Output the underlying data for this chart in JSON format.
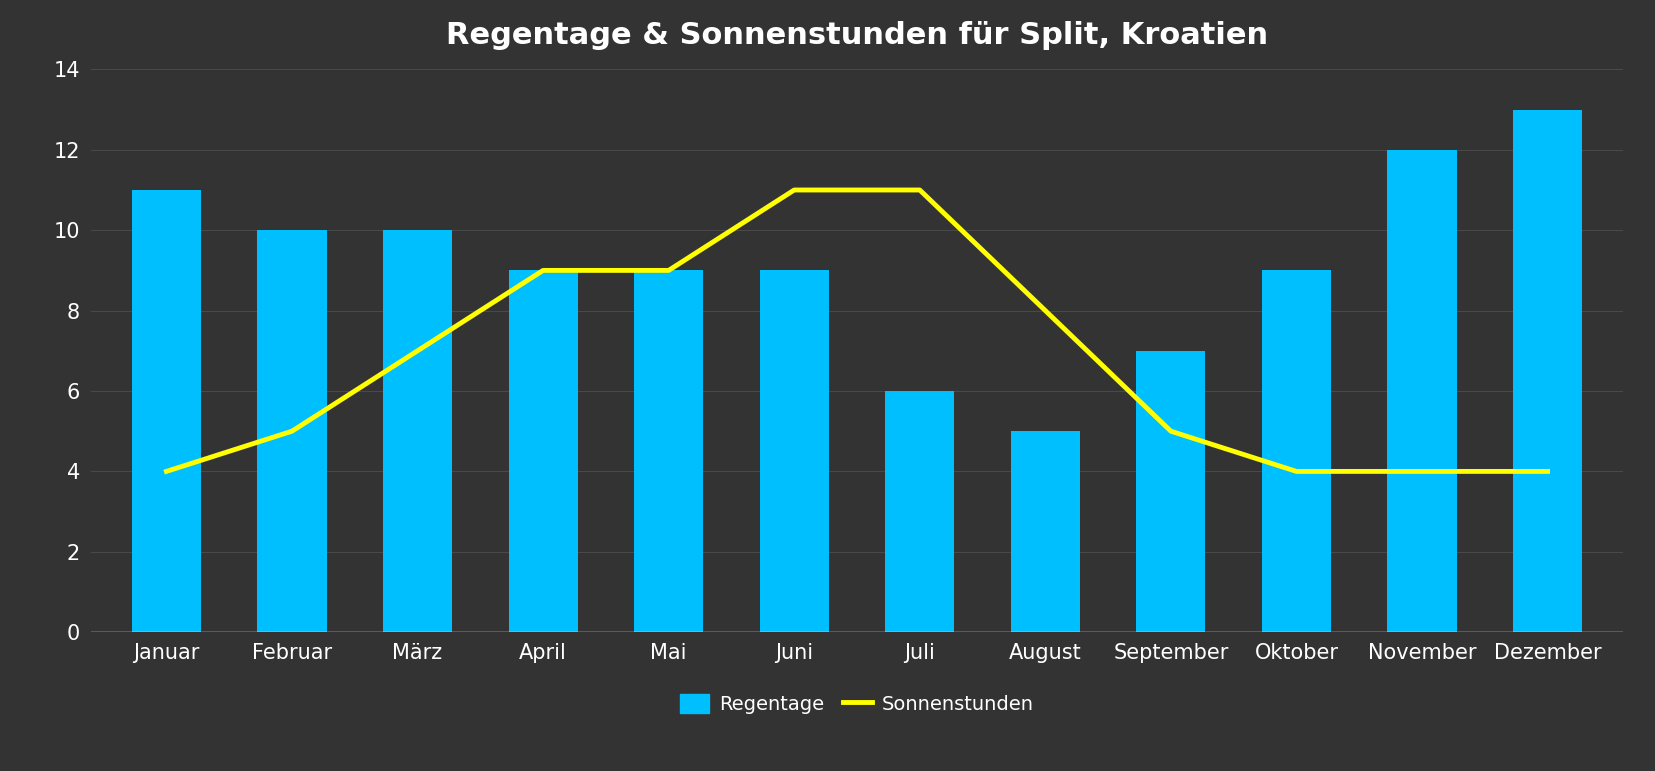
{
  "title": "Regentage & Sonnenstunden für Split, Kroatien",
  "months": [
    "Januar",
    "Februar",
    "März",
    "April",
    "Mai",
    "Juni",
    "Juli",
    "August",
    "September",
    "Oktober",
    "November",
    "Dezember"
  ],
  "regentage": [
    11,
    10,
    10,
    9,
    9,
    9,
    6,
    5,
    7,
    9,
    12,
    13
  ],
  "sonnenstunden": [
    4,
    5,
    7,
    9,
    9,
    11,
    11,
    8,
    5,
    4,
    4,
    4
  ],
  "bar_color": "#00BFFF",
  "line_color": "#FFFF00",
  "background_color": "#333333",
  "plot_bg_color": "#333333",
  "text_color": "#ffffff",
  "grid_color": "#4a4a4a",
  "ylim": [
    0,
    14
  ],
  "yticks": [
    0,
    2,
    4,
    6,
    8,
    10,
    12,
    14
  ],
  "title_fontsize": 22,
  "tick_fontsize": 15,
  "legend_fontsize": 14,
  "bar_width": 0.55,
  "line_width": 3.5,
  "legend_bar_label": "Regentage",
  "legend_line_label": "Sonnenstunden"
}
